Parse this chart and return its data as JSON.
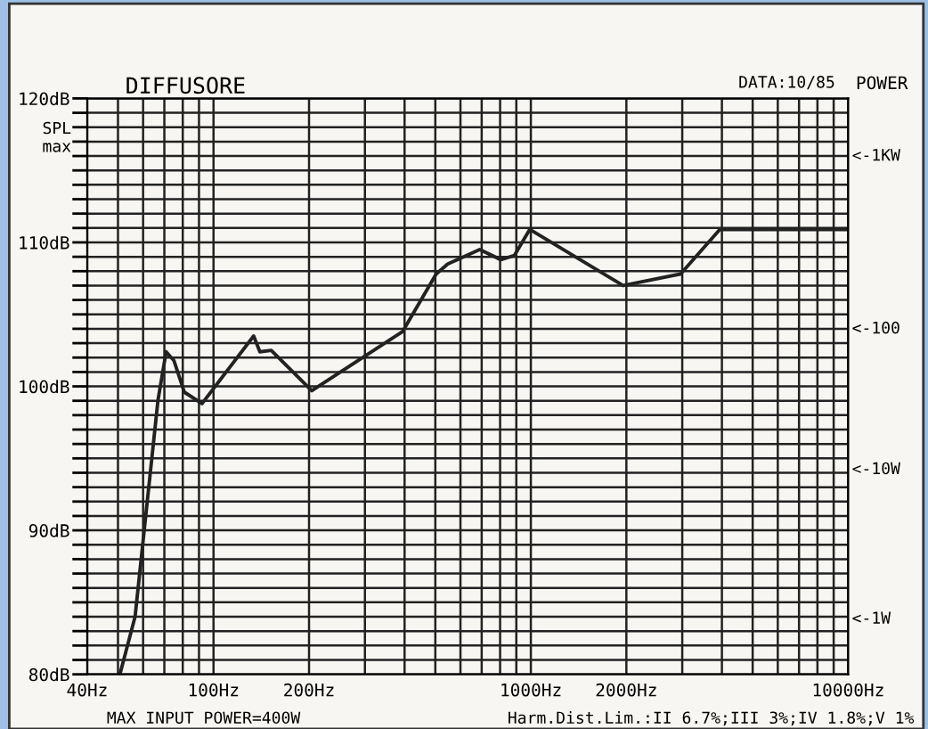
{
  "chart_data": {
    "type": "line",
    "title": "DIFFUSORE",
    "ylabel": "SPL\nmax",
    "y2label": "POWER",
    "annotations": [
      "DATA:10/85",
      "MAX INPUT POWER=400W",
      "Harm.Dist.Lim.:II 6.7%;III 3%;IV 1.8%;V 1%",
      "<-1KW",
      "<-100",
      "<-10W",
      "<-1W"
    ],
    "log": "x",
    "grid": true,
    "legend": false,
    "marker": "none",
    "line_style": "solid",
    "xlim": [
      40,
      10000
    ],
    "xticks": [
      {
        "value": 40,
        "label": "40Hz"
      },
      {
        "value": 50,
        "label": null
      },
      {
        "value": 60,
        "label": null
      },
      {
        "value": 70,
        "label": null
      },
      {
        "value": 80,
        "label": null
      },
      {
        "value": 90,
        "label": null
      },
      {
        "value": 100,
        "label": "100Hz"
      },
      {
        "value": 200,
        "label": "200Hz"
      },
      {
        "value": 300,
        "label": null
      },
      {
        "value": 400,
        "label": null
      },
      {
        "value": 500,
        "label": null
      },
      {
        "value": 600,
        "label": null
      },
      {
        "value": 700,
        "label": null
      },
      {
        "value": 800,
        "label": null
      },
      {
        "value": 900,
        "label": null
      },
      {
        "value": 1000,
        "label": "1000Hz"
      },
      {
        "value": 2000,
        "label": "2000Hz"
      },
      {
        "value": 3000,
        "label": null
      },
      {
        "value": 4000,
        "label": null
      },
      {
        "value": 5000,
        "label": null
      },
      {
        "value": 6000,
        "label": null
      },
      {
        "value": 7000,
        "label": null
      },
      {
        "value": 8000,
        "label": null
      },
      {
        "value": 9000,
        "label": null
      },
      {
        "value": 10000,
        "label": "10000Hz"
      }
    ],
    "ylim": [
      80,
      120
    ],
    "yticks": [
      {
        "value": 80,
        "label": "80dB"
      },
      {
        "value": 81,
        "label": null
      },
      {
        "value": 82,
        "label": null
      },
      {
        "value": 83,
        "label": null
      },
      {
        "value": 84,
        "label": null
      },
      {
        "value": 85,
        "label": null
      },
      {
        "value": 86,
        "label": null
      },
      {
        "value": 87,
        "label": null
      },
      {
        "value": 88,
        "label": null
      },
      {
        "value": 89,
        "label": null
      },
      {
        "value": 90,
        "label": "90dB"
      },
      {
        "value": 91,
        "label": null
      },
      {
        "value": 92,
        "label": null
      },
      {
        "value": 93,
        "label": null
      },
      {
        "value": 94,
        "label": null
      },
      {
        "value": 95,
        "label": null
      },
      {
        "value": 96,
        "label": null
      },
      {
        "value": 97,
        "label": null
      },
      {
        "value": 98,
        "label": null
      },
      {
        "value": 99,
        "label": null
      },
      {
        "value": 100,
        "label": "100dB"
      },
      {
        "value": 101,
        "label": null
      },
      {
        "value": 102,
        "label": null
      },
      {
        "value": 103,
        "label": null
      },
      {
        "value": 104,
        "label": null
      },
      {
        "value": 105,
        "label": null
      },
      {
        "value": 106,
        "label": null
      },
      {
        "value": 107,
        "label": null
      },
      {
        "value": 108,
        "label": null
      },
      {
        "value": 109,
        "label": null
      },
      {
        "value": 110,
        "label": "110dB"
      },
      {
        "value": 111,
        "label": null
      },
      {
        "value": 112,
        "label": null
      },
      {
        "value": 113,
        "label": null
      },
      {
        "value": 114,
        "label": null
      },
      {
        "value": 115,
        "label": null
      },
      {
        "value": 116,
        "label": null
      },
      {
        "value": 117,
        "label": null
      },
      {
        "value": 118,
        "label": null
      },
      {
        "value": 119,
        "label": null
      },
      {
        "value": 120,
        "label": "120dB"
      }
    ],
    "series": [
      {
        "color": "#222222",
        "x": [
          50.7,
          56.6,
          66.8,
          70.9,
          75,
          80.9,
          92,
          133.8,
          140,
          152,
          204,
          394,
          503,
          547,
          690,
          804,
          888,
          992,
          1953,
          2962,
          3940,
          10000
        ],
        "values": [
          80,
          84,
          99,
          102.4,
          101.8,
          99.6,
          98.8,
          103.5,
          102.4,
          102.5,
          99.7,
          103.8,
          107.8,
          108.5,
          109.5,
          108.8,
          109.1,
          110.9,
          107,
          107.8,
          110.9,
          110.9
        ]
      }
    ]
  }
}
